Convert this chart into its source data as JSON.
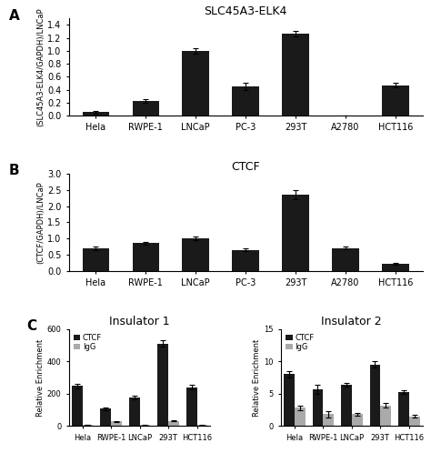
{
  "panel_A": {
    "title": "SLC45A3-ELK4",
    "ylabel": "(SLC45A3-ELK4/GAPDH)/LNCaP",
    "categories": [
      "Hela",
      "RWPE-1",
      "LNCaP",
      "PC-3",
      "293T",
      "A2780",
      "HCT116"
    ],
    "values": [
      0.05,
      0.22,
      1.0,
      0.45,
      1.27,
      0.0,
      0.47
    ],
    "errors": [
      0.02,
      0.03,
      0.04,
      0.06,
      0.04,
      0.0,
      0.03
    ],
    "ylim": [
      0,
      1.5
    ],
    "yticks": [
      0,
      0.2,
      0.4,
      0.6,
      0.8,
      1.0,
      1.2,
      1.4
    ],
    "bar_color": "#1a1a1a"
  },
  "panel_B": {
    "title": "CTCF",
    "ylabel": "(CTCF/GAPDH)/LNCaP",
    "categories": [
      "Hela",
      "RWPE-1",
      "LNCaP",
      "PC-3",
      "293T",
      "A2780",
      "HCT116"
    ],
    "values": [
      0.7,
      0.85,
      1.0,
      0.65,
      2.35,
      0.7,
      0.22
    ],
    "errors": [
      0.05,
      0.05,
      0.06,
      0.04,
      0.15,
      0.04,
      0.02
    ],
    "ylim": [
      0,
      3.0
    ],
    "yticks": [
      0,
      0.5,
      1.0,
      1.5,
      2.0,
      2.5,
      3.0
    ],
    "bar_color": "#1a1a1a"
  },
  "panel_C_ins1": {
    "title": "Insulator 1",
    "ylabel": "Relative Enrichment",
    "categories": [
      "Hela",
      "RWPE-1",
      "LNCaP",
      "293T",
      "HCT116"
    ],
    "ctcf_values": [
      248,
      108,
      175,
      510,
      240
    ],
    "ctcf_errors": [
      15,
      8,
      12,
      20,
      15
    ],
    "igg_values": [
      8,
      28,
      5,
      32,
      5
    ],
    "igg_errors": [
      2,
      3,
      1,
      5,
      1
    ],
    "ylim": [
      0,
      600
    ],
    "yticks": [
      0,
      200,
      400,
      600
    ],
    "ctcf_color": "#1a1a1a",
    "igg_color": "#aaaaaa"
  },
  "panel_C_ins2": {
    "title": "Insulator 2",
    "ylabel": "Relative Enrichment",
    "categories": [
      "Hela",
      "RWPE-1",
      "LNCaP",
      "293T",
      "HCT116"
    ],
    "ctcf_values": [
      8.0,
      5.7,
      6.4,
      9.5,
      5.2
    ],
    "ctcf_errors": [
      0.5,
      0.7,
      0.3,
      0.5,
      0.3
    ],
    "igg_values": [
      2.8,
      1.8,
      1.8,
      3.2,
      1.5
    ],
    "igg_errors": [
      0.3,
      0.5,
      0.2,
      0.3,
      0.2
    ],
    "ylim": [
      0,
      15
    ],
    "yticks": [
      0,
      5,
      10,
      15
    ],
    "ctcf_color": "#1a1a1a",
    "igg_color": "#aaaaaa"
  },
  "background_color": "#ffffff",
  "tick_fontsize": 7,
  "title_fontsize": 9,
  "panel_label_fontsize": 11
}
